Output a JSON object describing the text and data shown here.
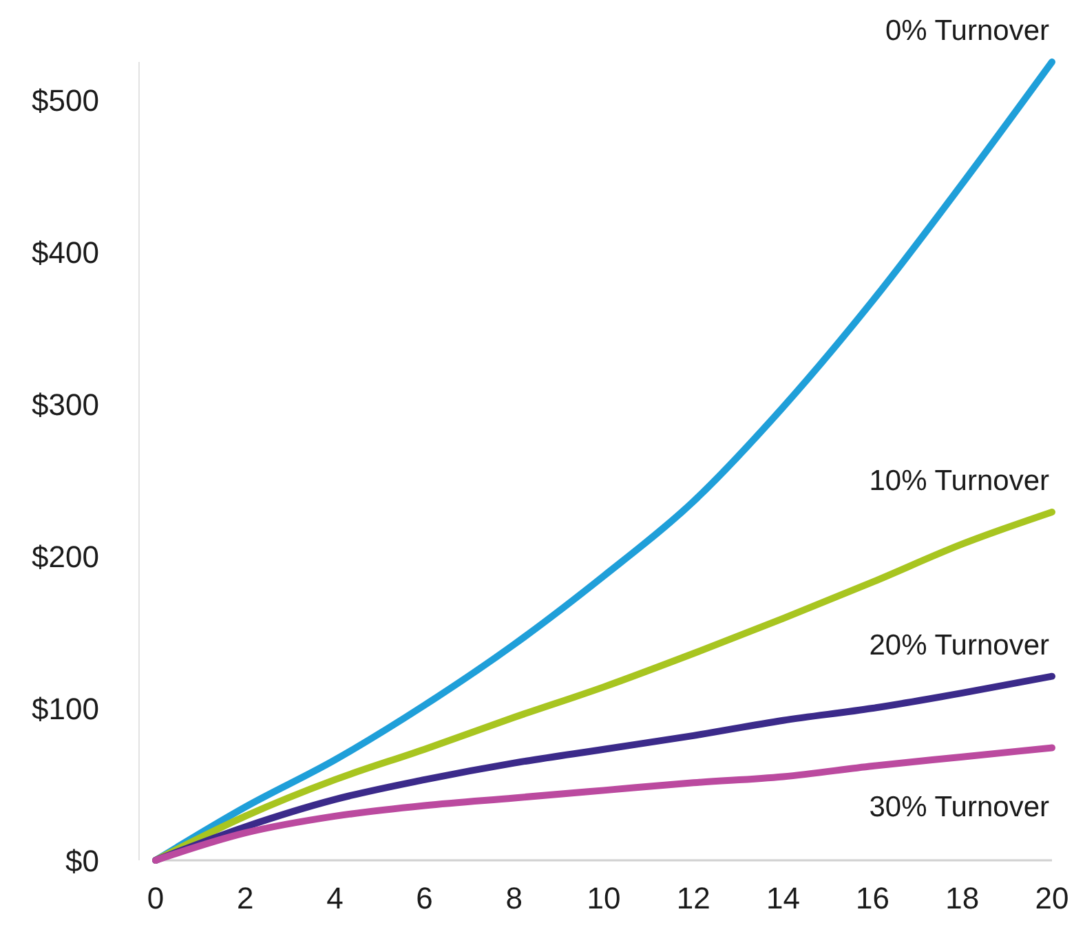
{
  "chart_data": {
    "type": "line",
    "x": [
      0,
      2,
      4,
      6,
      8,
      10,
      12,
      14,
      16,
      18,
      20
    ],
    "xlim": [
      0,
      20
    ],
    "xticks": [
      0,
      2,
      4,
      6,
      8,
      10,
      12,
      14,
      16,
      18,
      20
    ],
    "yticks": [
      {
        "value": 0,
        "label": "$0"
      },
      {
        "value": 100,
        "label": "$100"
      },
      {
        "value": 200,
        "label": "$200"
      },
      {
        "value": 300,
        "label": "$300"
      },
      {
        "value": 400,
        "label": "$400"
      },
      {
        "value": 500,
        "label": "$500"
      }
    ],
    "ylim": [
      0,
      525
    ],
    "grid": false,
    "marker": "none",
    "line_style": "solid",
    "series": [
      {
        "name": "0% Turnover",
        "color": "#1f9fd9",
        "values": [
          0,
          35,
          66,
          102,
          142,
          187,
          236,
          298,
          368,
          445,
          525
        ]
      },
      {
        "name": "10% Turnover",
        "color": "#a8c520",
        "values": [
          0,
          29,
          53,
          73,
          94,
          114,
          136,
          159,
          183,
          208,
          229
        ]
      },
      {
        "name": "20% Turnover",
        "color": "#3b2a8a",
        "values": [
          0,
          22,
          40,
          53,
          64,
          73,
          82,
          92,
          100,
          110,
          121
        ]
      },
      {
        "name": "30% Turnover",
        "color": "#bb4a9f",
        "values": [
          0,
          18,
          29,
          36,
          41,
          46,
          51,
          55,
          62,
          68,
          74
        ]
      }
    ]
  }
}
